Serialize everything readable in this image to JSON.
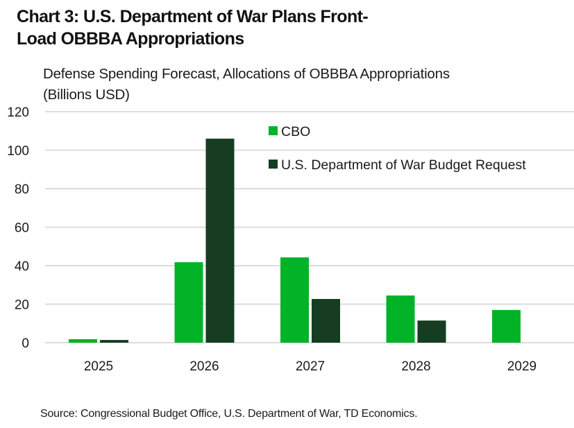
{
  "title_line1": "Chart 3: U.S. Department of War Plans Front-",
  "title_line2": "Load OBBBA Appropriations",
  "subtitle_line1": "Defense Spending Forecast, Allocations of OBBBA Appropriations",
  "subtitle_line2": "(Billions USD)",
  "source": "Source: Congressional Budget Office, U.S. Department of War, TD Economics.",
  "chart_data": {
    "type": "bar",
    "title": "Chart 3: U.S. Department of War Plans Front-Load OBBBA Appropriations",
    "subtitle": "Defense Spending Forecast, Allocations of OBBBA Appropriations (Billions USD)",
    "xlabel": "",
    "ylabel": "Billions USD",
    "categories": [
      "2025",
      "2026",
      "2027",
      "2028",
      "2029"
    ],
    "series": [
      {
        "name": "CBO",
        "color": "#02B328",
        "values": [
          1.8,
          41.8,
          44.3,
          24.5,
          17.0
        ]
      },
      {
        "name": "U.S. Department of War Budget Request",
        "color": "#163D22",
        "values": [
          1.4,
          106,
          22.7,
          11.5,
          0
        ]
      }
    ],
    "ylim": [
      0,
      120
    ],
    "yticks": [
      "0",
      "20",
      "40",
      "60",
      "80",
      "100",
      "120"
    ],
    "grid": true,
    "gridColor": "#DCDCDC",
    "legend": "top-center"
  }
}
